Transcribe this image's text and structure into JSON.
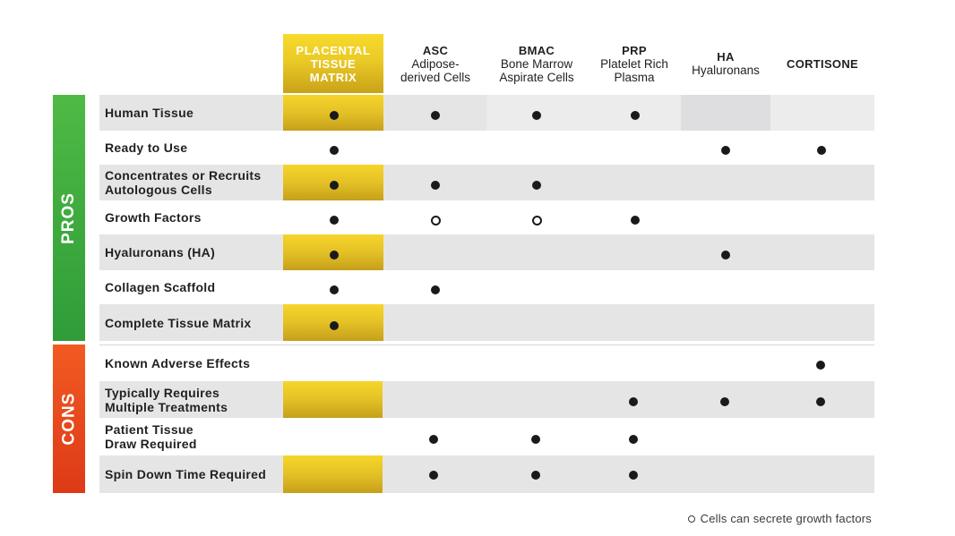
{
  "columns": [
    {
      "key": "placental",
      "title": "PLACENTAL\nTISSUE\nMATRIX",
      "sub": ""
    },
    {
      "key": "asc",
      "title": "ASC",
      "sub": "Adipose-\nderived Cells"
    },
    {
      "key": "bmac",
      "title": "BMAC",
      "sub": "Bone Marrow\nAspirate Cells"
    },
    {
      "key": "prp",
      "title": "PRP",
      "sub": "Platelet Rich\nPlasma"
    },
    {
      "key": "ha",
      "title": "HA",
      "sub": "Hyaluronans"
    },
    {
      "key": "cortisone",
      "title": "CORTISONE",
      "sub": ""
    }
  ],
  "sections": {
    "pros_label": "PROS",
    "cons_label": "CONS"
  },
  "pros_rows": [
    {
      "label": "Human Tissue",
      "marks": [
        "full",
        "full",
        "full",
        "full",
        "",
        ""
      ]
    },
    {
      "label": "Ready to Use",
      "marks": [
        "full",
        "",
        "",
        "",
        "full",
        "full"
      ]
    },
    {
      "label": "Concentrates or Recruits\nAutologous Cells",
      "marks": [
        "full",
        "full",
        "full",
        "",
        "",
        ""
      ]
    },
    {
      "label": "Growth Factors",
      "marks": [
        "full",
        "open",
        "open",
        "full",
        "",
        ""
      ]
    },
    {
      "label": "Hyaluronans (HA)",
      "marks": [
        "full",
        "",
        "",
        "",
        "full",
        ""
      ]
    },
    {
      "label": "Collagen Scaffold",
      "marks": [
        "full",
        "full",
        "",
        "",
        "",
        ""
      ]
    },
    {
      "label": "Complete Tissue Matrix",
      "marks": [
        "full",
        "",
        "",
        "",
        "",
        ""
      ]
    }
  ],
  "cons_rows": [
    {
      "label": "Known Adverse Effects",
      "marks": [
        "",
        "",
        "",
        "",
        "",
        "full"
      ]
    },
    {
      "label": "Typically Requires\nMultiple Treatments",
      "marks": [
        "",
        "",
        "",
        "full",
        "full",
        "full"
      ]
    },
    {
      "label": "Patient Tissue\nDraw Required",
      "marks": [
        "",
        "full",
        "full",
        "full",
        "",
        ""
      ]
    },
    {
      "label": "Spin Down Time Required",
      "marks": [
        "",
        "full",
        "full",
        "full",
        "",
        ""
      ]
    }
  ],
  "legend": {
    "open_marker_meaning": "Cells can secrete growth factors"
  },
  "colors": {
    "gold": "#e6c526",
    "pros_green": "#3aa83c",
    "cons_red": "#e84a1d",
    "row_shade": "#e5e5e6"
  }
}
